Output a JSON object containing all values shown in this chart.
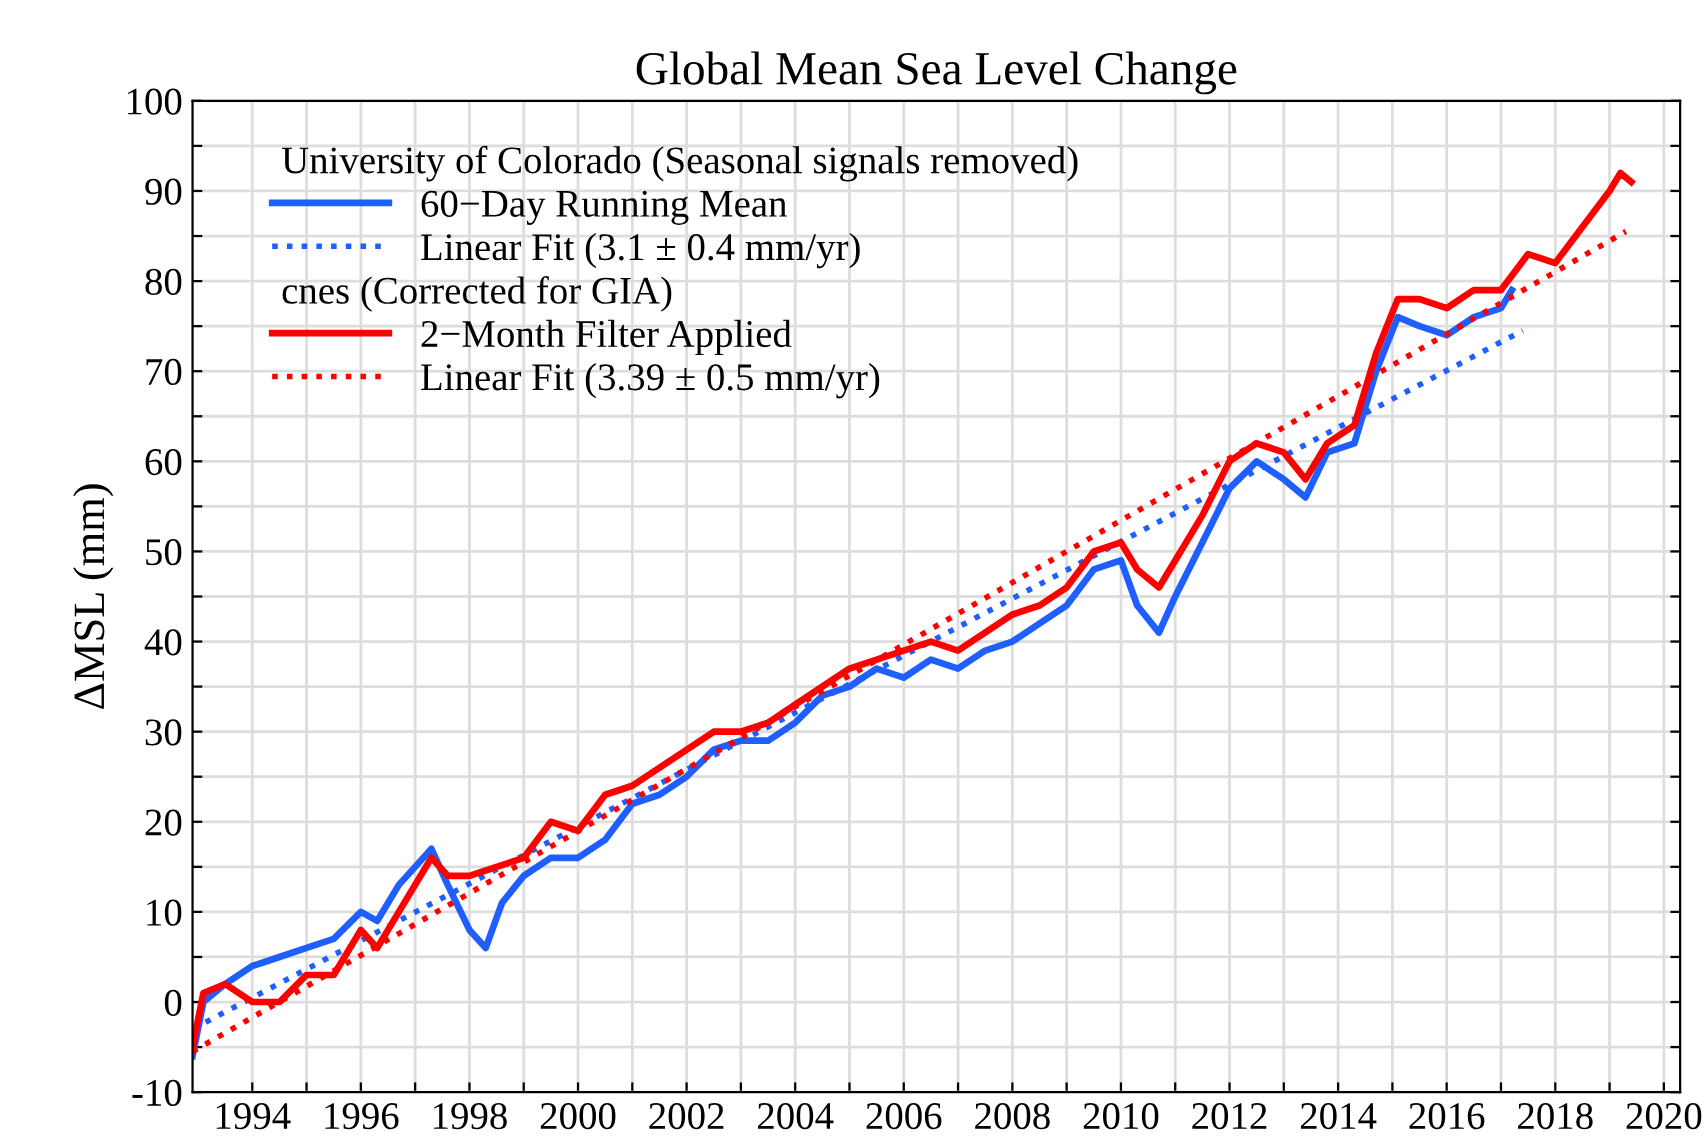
{
  "chart_data": {
    "type": "line",
    "title": "Global Mean Sea Level Change",
    "ylabel": "ΔMSL (mm)",
    "xlim": [
      1992.9,
      2020.3
    ],
    "ylim": [
      -10,
      100
    ],
    "xticks": [
      1994,
      {
        "value": 1995,
        "label": null
      },
      1996,
      {
        "value": 1997,
        "label": null
      },
      1998,
      {
        "value": 1999,
        "label": null
      },
      2000,
      {
        "value": 2001,
        "label": null
      },
      2002,
      {
        "value": 2003,
        "label": null
      },
      2004,
      {
        "value": 2005,
        "label": null
      },
      2006,
      {
        "value": 2007,
        "label": null
      },
      2008,
      {
        "value": 2009,
        "label": null
      },
      2010,
      {
        "value": 2011,
        "label": null
      },
      2012,
      {
        "value": 2013,
        "label": null
      },
      2014,
      {
        "value": 2015,
        "label": null
      },
      2016,
      {
        "value": 2017,
        "label": null
      },
      2018,
      {
        "value": 2019,
        "label": null
      },
      2020
    ],
    "yticks": [
      -10,
      {
        "value": -5,
        "label": null
      },
      0,
      {
        "value": 5,
        "label": null
      },
      10,
      {
        "value": 15,
        "label": null
      },
      20,
      {
        "value": 25,
        "label": null
      },
      30,
      {
        "value": 35,
        "label": null
      },
      40,
      {
        "value": 45,
        "label": null
      },
      50,
      {
        "value": 55,
        "label": null
      },
      60,
      {
        "value": 65,
        "label": null
      },
      70,
      {
        "value": 75,
        "label": null
      },
      80,
      {
        "value": 85,
        "label": null
      },
      90,
      {
        "value": 95,
        "label": null
      },
      100
    ],
    "grid": true,
    "legend": "top left",
    "annotations": [
      "University of Colorado (Seasonal signals removed)",
      "cnes (Corrected for GIA)"
    ],
    "series": [
      {
        "name": "60−Day Running Mean",
        "color": "#1f5fff",
        "line_style": "solid",
        "x": [
          1992.9,
          1993.1,
          1993.5,
          1994,
          1994.5,
          1995,
          1995.5,
          1996,
          1996.3,
          1996.7,
          1997.3,
          1997.6,
          1998.0,
          1998.3,
          1998.6,
          1999,
          1999.5,
          2000,
          2000.5,
          2001,
          2001.5,
          2002,
          2002.5,
          2003,
          2003.5,
          2004,
          2004.5,
          2005,
          2005.5,
          2006,
          2006.5,
          2007,
          2007.5,
          2008,
          2008.5,
          2009,
          2009.5,
          2010,
          2010.3,
          2010.7,
          2011,
          2011.5,
          2012,
          2012.5,
          2013,
          2013.4,
          2013.8,
          2014.3,
          2014.7,
          2015.1,
          2015.5,
          2016,
          2016.5,
          2017,
          2017.2
        ],
        "values": [
          -6,
          0,
          2,
          4,
          5,
          6,
          7,
          10,
          9,
          13,
          17,
          13,
          8,
          6,
          11,
          14,
          16,
          16,
          18,
          22,
          23,
          25,
          28,
          29,
          29,
          31,
          34,
          35,
          37,
          36,
          38,
          37,
          39,
          40,
          42,
          44,
          48,
          49,
          44,
          41,
          45,
          51,
          57,
          60,
          58,
          56,
          61,
          62,
          70,
          76,
          75,
          74,
          76,
          77,
          79
        ]
      },
      {
        "name": "Linear Fit (3.1 ± 0.4 mm/yr)",
        "color": "#1f5fff",
        "line_style": "dotted",
        "x": [
          1992.9,
          2017.4
        ],
        "values": [
          -3,
          74.5
        ]
      },
      {
        "name": "2−Month Filter Applied",
        "color": "#ff0000",
        "line_style": "solid",
        "x": [
          1992.9,
          1993.1,
          1993.5,
          1994,
          1994.5,
          1995,
          1995.5,
          1996,
          1996.3,
          1996.7,
          1997.3,
          1997.6,
          1998,
          1998.5,
          1999,
          1999.5,
          2000,
          2000.5,
          2001,
          2001.5,
          2002,
          2002.5,
          2003,
          2003.5,
          2004,
          2004.5,
          2005,
          2005.5,
          2006,
          2006.5,
          2007,
          2007.5,
          2008,
          2008.5,
          2009,
          2009.5,
          2010,
          2010.3,
          2010.7,
          2011,
          2011.5,
          2012,
          2012.5,
          2013,
          2013.4,
          2013.8,
          2014.3,
          2014.7,
          2015.1,
          2015.5,
          2016,
          2016.5,
          2017,
          2017.5,
          2018,
          2018.5,
          2019,
          2019.2,
          2019.4
        ],
        "values": [
          -5,
          1,
          2,
          0,
          0,
          3,
          3,
          8,
          6,
          10,
          16,
          14,
          14,
          15,
          16,
          20,
          19,
          23,
          24,
          26,
          28,
          30,
          30,
          31,
          33,
          35,
          37,
          38,
          39,
          40,
          39,
          41,
          43,
          44,
          46,
          50,
          51,
          48,
          46,
          49,
          54,
          60,
          62,
          61,
          58,
          62,
          64,
          72,
          78,
          78,
          77,
          79,
          79,
          83,
          82,
          86,
          90,
          92,
          91
        ]
      },
      {
        "name": "Linear Fit (3.39 ± 0.5 mm/yr)",
        "color": "#ff0000",
        "line_style": "dotted",
        "x": [
          1992.9,
          2019.3
        ],
        "values": [
          -5.5,
          85.5
        ]
      }
    ]
  }
}
